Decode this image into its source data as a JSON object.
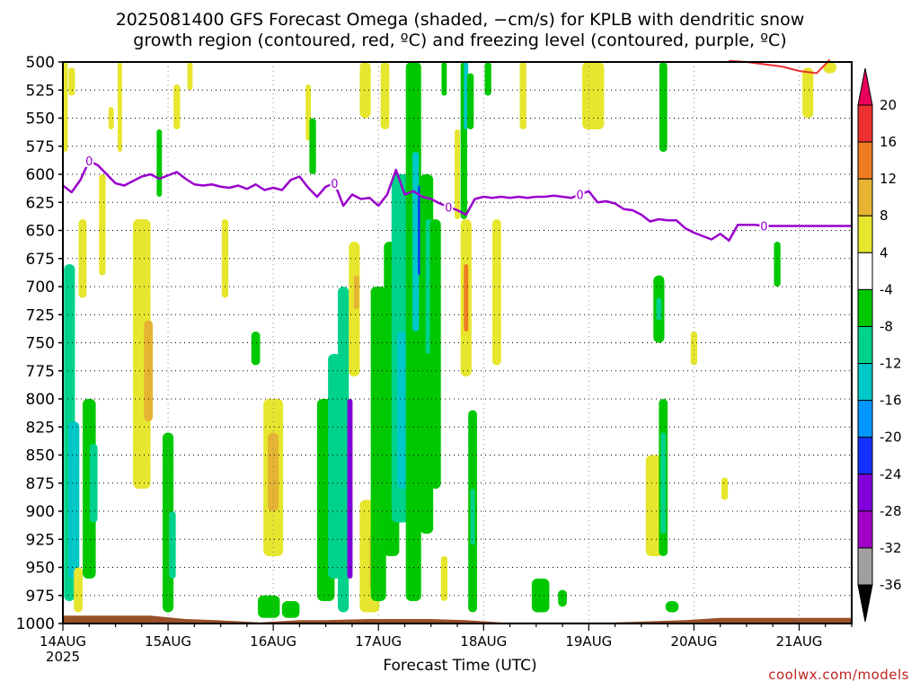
{
  "chart_data": {
    "type": "heatmap",
    "title_line1": "2025081400 GFS Forecast Omega (shaded, −cm/s) for KPLB with dendritic snow",
    "title_line2": "growth region (contoured, red, ºC) and freezing level (contoured, purple, ºC)",
    "xlabel": "Forecast Time (UTC)",
    "credit": "coolwx.com/models",
    "y_levels": [
      500,
      525,
      550,
      575,
      600,
      625,
      650,
      675,
      700,
      725,
      750,
      775,
      800,
      825,
      850,
      875,
      900,
      925,
      950,
      975,
      1000
    ],
    "ylim": [
      1000,
      500
    ],
    "xlim_hours": [
      0,
      180
    ],
    "x_ticks": [
      "14AUG",
      "15AUG",
      "16AUG",
      "17AUG",
      "18AUG",
      "19AUG",
      "20AUG",
      "21AUG"
    ],
    "x_year": "2025",
    "colorbar_levels": [
      20,
      16,
      12,
      8,
      4,
      -4,
      -8,
      -12,
      -16,
      -20,
      -24,
      -28,
      -32,
      -36
    ],
    "colorbar_colors": [
      "#e8005a",
      "#ee3030",
      "#ee7d22",
      "#e6b432",
      "#e6e62e",
      "#ffffff",
      "#00c800",
      "#00d28c",
      "#00c8c8",
      "#0096ff",
      "#1432ff",
      "#8200dc",
      "#a000c8",
      "#a0a0a0",
      "#000000"
    ],
    "grid": true,
    "freezing_level_label": "0",
    "freezing_level_color": "#9900cc",
    "freezing_level_series": {
      "hours": [
        0,
        2,
        4,
        6,
        8,
        10,
        12,
        14,
        16,
        18,
        20,
        22,
        24,
        26,
        28,
        30,
        32,
        34,
        36,
        38,
        40,
        42,
        44,
        46,
        48,
        50,
        52,
        54,
        56,
        58,
        60,
        62,
        64,
        66,
        68,
        70,
        72,
        74,
        76,
        78,
        80,
        82,
        84,
        86,
        88,
        90,
        92,
        94,
        96,
        98,
        100,
        102,
        104,
        106,
        108,
        110,
        112,
        114,
        116,
        118,
        120,
        122,
        124,
        126,
        128,
        130,
        132,
        134,
        136,
        138,
        140,
        142,
        144,
        146,
        148,
        150,
        152,
        154,
        156,
        158,
        160,
        162,
        164,
        166,
        168,
        170,
        172,
        174,
        176,
        178,
        180
      ],
      "pressure": [
        610,
        616,
        605,
        588,
        592,
        600,
        608,
        610,
        606,
        602,
        600,
        604,
        601,
        598,
        604,
        609,
        610,
        609,
        611,
        612,
        610,
        613,
        609,
        614,
        612,
        614,
        605,
        602,
        612,
        620,
        611,
        608,
        628,
        618,
        622,
        621,
        628,
        618,
        596,
        618,
        615,
        620,
        622,
        626,
        629,
        632,
        636,
        622,
        620,
        621,
        620,
        621,
        620,
        621,
        620,
        620,
        619,
        620,
        621,
        618,
        615,
        625,
        624,
        626,
        631,
        632,
        636,
        642,
        640,
        641,
        641,
        648,
        652,
        655,
        658,
        653,
        659,
        645,
        645,
        645,
        646,
        646,
        646,
        646,
        646,
        646,
        646,
        646,
        646,
        646,
        646
      ]
    },
    "dgz_series": {
      "color": "#ee3030",
      "hours": [
        152,
        156,
        160,
        164,
        168,
        172,
        175
      ],
      "pressure": [
        499,
        500,
        502,
        504,
        508,
        510,
        498
      ]
    },
    "omega_cells": [
      {
        "h": 0.5,
        "p1": 500,
        "p2": 580,
        "w": 1.2,
        "v": 4
      },
      {
        "h": 2,
        "p1": 505,
        "p2": 530,
        "w": 1.5,
        "v": 4
      },
      {
        "h": 1.5,
        "p1": 680,
        "p2": 980,
        "w": 2.5,
        "v": -10
      },
      {
        "h": 2.5,
        "p1": 820,
        "p2": 960,
        "w": 2.5,
        "v": -14
      },
      {
        "h": 3.5,
        "p1": 950,
        "p2": 990,
        "w": 2,
        "v": 6
      },
      {
        "h": 4.5,
        "p1": 640,
        "p2": 710,
        "w": 1.8,
        "v": 4
      },
      {
        "h": 6,
        "p1": 800,
        "p2": 960,
        "w": 3,
        "v": -6
      },
      {
        "h": 7,
        "p1": 840,
        "p2": 910,
        "w": 1.8,
        "v": -12
      },
      {
        "h": 9,
        "p1": 600,
        "p2": 690,
        "w": 1.5,
        "v": 4
      },
      {
        "h": 11,
        "p1": 540,
        "p2": 560,
        "w": 1.2,
        "v": 4
      },
      {
        "h": 13,
        "p1": 500,
        "p2": 580,
        "w": 1,
        "v": 4
      },
      {
        "h": 18,
        "p1": 640,
        "p2": 880,
        "w": 4,
        "v": 6
      },
      {
        "h": 19.5,
        "p1": 730,
        "p2": 820,
        "w": 2,
        "v": 10
      },
      {
        "h": 22,
        "p1": 560,
        "p2": 620,
        "w": 1.2,
        "v": -6
      },
      {
        "h": 24,
        "p1": 830,
        "p2": 990,
        "w": 2.5,
        "v": -6
      },
      {
        "h": 25,
        "p1": 900,
        "p2": 960,
        "w": 1.5,
        "v": -12
      },
      {
        "h": 26,
        "p1": 520,
        "p2": 560,
        "w": 1.5,
        "v": 4
      },
      {
        "h": 29,
        "p1": 500,
        "p2": 525,
        "w": 1.2,
        "v": 4
      },
      {
        "h": 37,
        "p1": 640,
        "p2": 710,
        "w": 1.5,
        "v": 4
      },
      {
        "h": 44,
        "p1": 740,
        "p2": 770,
        "w": 2,
        "v": -6
      },
      {
        "h": 48,
        "p1": 800,
        "p2": 940,
        "w": 4.5,
        "v": 6
      },
      {
        "h": 48,
        "p1": 830,
        "p2": 900,
        "w": 2.5,
        "v": 10
      },
      {
        "h": 47,
        "p1": 975,
        "p2": 995,
        "w": 5,
        "v": -6
      },
      {
        "h": 52,
        "p1": 980,
        "p2": 995,
        "w": 4,
        "v": -6
      },
      {
        "h": 56,
        "p1": 520,
        "p2": 570,
        "w": 1.2,
        "v": 4
      },
      {
        "h": 57,
        "p1": 550,
        "p2": 600,
        "w": 1.5,
        "v": -6
      },
      {
        "h": 60,
        "p1": 800,
        "p2": 980,
        "w": 4,
        "v": -8
      },
      {
        "h": 62,
        "p1": 760,
        "p2": 960,
        "w": 3,
        "v": -10
      },
      {
        "h": 64,
        "p1": 700,
        "p2": 990,
        "w": 2.5,
        "v": -12
      },
      {
        "h": 65.5,
        "p1": 800,
        "p2": 960,
        "w": 1.2,
        "v": -26
      },
      {
        "h": 66.5,
        "p1": 660,
        "p2": 780,
        "w": 2.5,
        "v": 6
      },
      {
        "h": 67,
        "p1": 690,
        "p2": 720,
        "w": 1.2,
        "v": 10
      },
      {
        "h": 69,
        "p1": 500,
        "p2": 550,
        "w": 2.5,
        "v": 4
      },
      {
        "h": 70,
        "p1": 890,
        "p2": 990,
        "w": 4.5,
        "v": 6
      },
      {
        "h": 71,
        "p1": 920,
        "p2": 970,
        "w": 2,
        "v": 10
      },
      {
        "h": 72,
        "p1": 700,
        "p2": 980,
        "w": 3.5,
        "v": -8
      },
      {
        "h": 73.5,
        "p1": 500,
        "p2": 560,
        "w": 2,
        "v": 4
      },
      {
        "h": 75,
        "p1": 660,
        "p2": 940,
        "w": 3.5,
        "v": -8
      },
      {
        "h": 77,
        "p1": 600,
        "p2": 910,
        "w": 4,
        "v": -10
      },
      {
        "h": 77.5,
        "p1": 740,
        "p2": 880,
        "w": 2.5,
        "v": -14
      },
      {
        "h": 80,
        "p1": 500,
        "p2": 980,
        "w": 3.5,
        "v": -8
      },
      {
        "h": 80.5,
        "p1": 580,
        "p2": 740,
        "w": 1.5,
        "v": -16
      },
      {
        "h": 81.5,
        "p1": 610,
        "p2": 690,
        "w": 1,
        "v": -22
      },
      {
        "h": 83,
        "p1": 600,
        "p2": 920,
        "w": 3,
        "v": -8
      },
      {
        "h": 83.5,
        "p1": 640,
        "p2": 760,
        "w": 1.5,
        "v": -12
      },
      {
        "h": 85,
        "p1": 640,
        "p2": 880,
        "w": 2.5,
        "v": -6
      },
      {
        "h": 87,
        "p1": 940,
        "p2": 980,
        "w": 1.5,
        "v": 4
      },
      {
        "h": 87,
        "p1": 500,
        "p2": 530,
        "w": 1.2,
        "v": -6
      },
      {
        "h": 91.5,
        "p1": 500,
        "p2": 640,
        "w": 1.5,
        "v": -8
      },
      {
        "h": 92,
        "p1": 500,
        "p2": 560,
        "w": 1,
        "v": -14
      },
      {
        "h": 93,
        "p1": 510,
        "p2": 560,
        "w": 1.5,
        "v": -6
      },
      {
        "h": 90,
        "p1": 560,
        "p2": 640,
        "w": 1.2,
        "v": 4
      },
      {
        "h": 92,
        "p1": 640,
        "p2": 780,
        "w": 2.5,
        "v": 6
      },
      {
        "h": 92,
        "p1": 680,
        "p2": 740,
        "w": 1,
        "v": 12
      },
      {
        "h": 93.5,
        "p1": 810,
        "p2": 990,
        "w": 2,
        "v": -8
      },
      {
        "h": 93.5,
        "p1": 880,
        "p2": 930,
        "w": 1,
        "v": -12
      },
      {
        "h": 97,
        "p1": 500,
        "p2": 530,
        "w": 1.5,
        "v": -6
      },
      {
        "h": 99,
        "p1": 640,
        "p2": 770,
        "w": 2,
        "v": 4
      },
      {
        "h": 105,
        "p1": 500,
        "p2": 560,
        "w": 1.5,
        "v": 4
      },
      {
        "h": 109,
        "p1": 960,
        "p2": 990,
        "w": 4,
        "v": -6
      },
      {
        "h": 114,
        "p1": 970,
        "p2": 985,
        "w": 2,
        "v": -6
      },
      {
        "h": 121,
        "p1": 500,
        "p2": 560,
        "w": 5,
        "v": 4
      },
      {
        "h": 137,
        "p1": 500,
        "p2": 580,
        "w": 1.8,
        "v": -6
      },
      {
        "h": 136,
        "p1": 690,
        "p2": 750,
        "w": 2.5,
        "v": -6
      },
      {
        "h": 136,
        "p1": 710,
        "p2": 730,
        "w": 1.2,
        "v": -12
      },
      {
        "h": 135,
        "p1": 850,
        "p2": 940,
        "w": 4,
        "v": 6
      },
      {
        "h": 137,
        "p1": 800,
        "p2": 940,
        "w": 2,
        "v": -6
      },
      {
        "h": 137,
        "p1": 830,
        "p2": 920,
        "w": 1.2,
        "v": -12
      },
      {
        "h": 139,
        "p1": 980,
        "p2": 990,
        "w": 3,
        "v": -6
      },
      {
        "h": 144,
        "p1": 740,
        "p2": 770,
        "w": 1.5,
        "v": 4
      },
      {
        "h": 151,
        "p1": 870,
        "p2": 890,
        "w": 1.5,
        "v": 4
      },
      {
        "h": 163,
        "p1": 660,
        "p2": 700,
        "w": 1.5,
        "v": -6
      },
      {
        "h": 170,
        "p1": 505,
        "p2": 550,
        "w": 2.5,
        "v": 4
      },
      {
        "h": 175,
        "p1": 500,
        "p2": 510,
        "w": 3,
        "v": 4
      }
    ],
    "ground_profile": {
      "color": "#994f28",
      "hours": [
        0,
        20,
        28,
        35,
        45,
        54,
        60,
        70,
        84,
        92,
        100,
        112,
        118,
        126,
        134,
        142,
        150,
        160,
        170,
        180
      ],
      "pressure": [
        993,
        993,
        996,
        997,
        999,
        997,
        997,
        996,
        996,
        997,
        999,
        999,
        999,
        999,
        998,
        997,
        995,
        995,
        995,
        995
      ]
    }
  }
}
